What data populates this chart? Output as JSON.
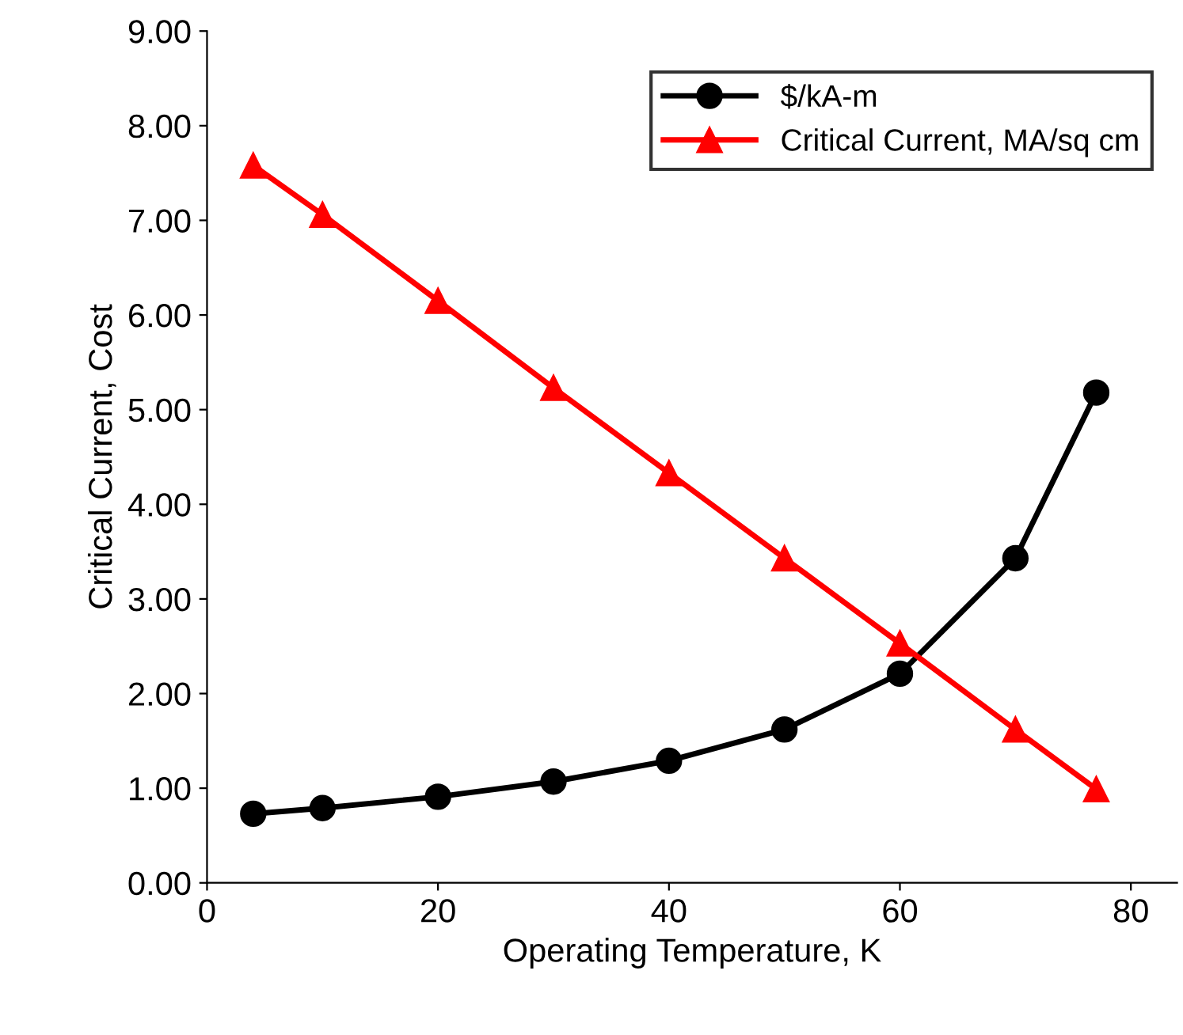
{
  "chart_data": {
    "type": "line",
    "xlabel": "Operating Temperature, K",
    "ylabel": "Critical Current, Cost",
    "xlim": [
      0,
      84
    ],
    "xticks": [
      0,
      20,
      40,
      60,
      80
    ],
    "ylim": [
      0,
      9
    ],
    "yticks": [
      {
        "value": 0,
        "label": "0.00"
      },
      {
        "value": 1,
        "label": "1.00"
      },
      {
        "value": 2,
        "label": "2.00"
      },
      {
        "value": 3,
        "label": "3.00"
      },
      {
        "value": 4,
        "label": "4.00"
      },
      {
        "value": 5,
        "label": "5.00"
      },
      {
        "value": 6,
        "label": "6.00"
      },
      {
        "value": 7,
        "label": "7.00"
      },
      {
        "value": 8,
        "label": "8.00"
      },
      {
        "value": 9,
        "label": "9.00"
      }
    ],
    "x": [
      4,
      10,
      20,
      30,
      40,
      50,
      60,
      70,
      77
    ],
    "series": [
      {
        "name": "$/kA-m",
        "color": "#000000",
        "marker": "circle",
        "values": [
          0.73,
          0.79,
          0.91,
          1.07,
          1.29,
          1.62,
          2.21,
          3.43,
          5.18
        ]
      },
      {
        "name": "Critical Current, MA/sq cm",
        "color": "#ff0000",
        "marker": "triangle",
        "values": [
          7.58,
          7.06,
          6.15,
          5.23,
          4.33,
          3.43,
          2.53,
          1.62,
          0.99
        ]
      }
    ],
    "legend": "top right",
    "grid": false,
    "line_style": "solid"
  }
}
